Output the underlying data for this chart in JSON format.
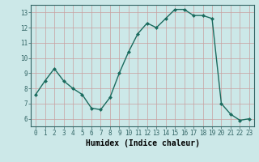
{
  "x": [
    0,
    1,
    2,
    3,
    4,
    5,
    6,
    7,
    8,
    9,
    10,
    11,
    12,
    13,
    14,
    15,
    16,
    17,
    18,
    19,
    20,
    21,
    22,
    23
  ],
  "y": [
    7.6,
    8.5,
    9.3,
    8.5,
    8.0,
    7.6,
    6.7,
    6.6,
    7.4,
    9.0,
    10.4,
    11.6,
    12.3,
    12.0,
    12.6,
    13.2,
    13.2,
    12.8,
    12.8,
    12.6,
    7.0,
    6.3,
    5.9,
    6.0
  ],
  "line_color": "#1a6b5e",
  "marker": "D",
  "markersize": 2.5,
  "linewidth": 1.0,
  "xlabel": "Humidex (Indice chaleur)",
  "xlabel_fontsize": 7,
  "ylim": [
    5.5,
    13.5
  ],
  "xlim": [
    -0.5,
    23.5
  ],
  "yticks": [
    6,
    7,
    8,
    9,
    10,
    11,
    12,
    13
  ],
  "xticks": [
    0,
    1,
    2,
    3,
    4,
    5,
    6,
    7,
    8,
    9,
    10,
    11,
    12,
    13,
    14,
    15,
    16,
    17,
    18,
    19,
    20,
    21,
    22,
    23
  ],
  "xtick_labels": [
    "0",
    "1",
    "2",
    "3",
    "4",
    "5",
    "6",
    "7",
    "8",
    "9",
    "10",
    "11",
    "12",
    "13",
    "14",
    "15",
    "16",
    "17",
    "18",
    "19",
    "20",
    "21",
    "22",
    "23"
  ],
  "grid_color": "#c8a0a0",
  "background_color": "#cce8e8",
  "tick_fontsize": 5.5,
  "fig_background": "#cce8e8",
  "spine_color": "#336666"
}
